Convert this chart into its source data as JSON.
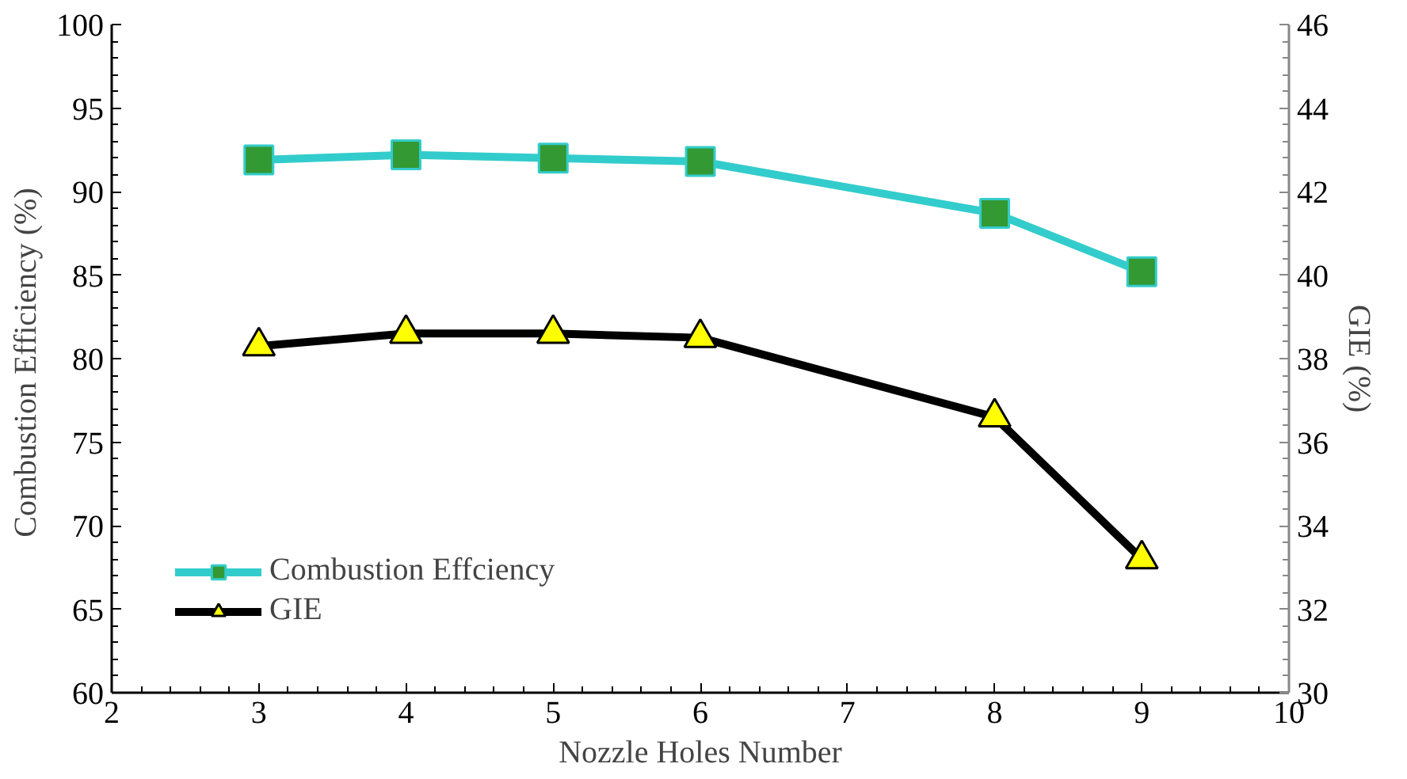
{
  "chart_data": {
    "type": "line",
    "xlabel": "Nozzle Holes Number",
    "ylabel": "Combustion  Efficiency (%)",
    "y2label": "GIE (%)",
    "x": [
      3,
      4,
      5,
      6,
      8,
      9
    ],
    "series": [
      {
        "name": "Combustion Effciency",
        "color": "#33cccc",
        "marker": "square",
        "values": [
          91.9,
          92.2,
          92.0,
          91.8,
          88.7,
          85.2
        ]
      },
      {
        "name": "GIE",
        "color": "#000000",
        "marker": "triangle",
        "axis": "y2",
        "values": [
          38.3,
          38.6,
          38.6,
          38.5,
          36.6,
          33.2
        ]
      }
    ],
    "xlim": [
      2,
      10
    ],
    "xticks": [
      2,
      3,
      4,
      5,
      6,
      7,
      8,
      9,
      10
    ],
    "ylim": [
      60,
      100
    ],
    "yticks": [
      60,
      65,
      70,
      75,
      80,
      85,
      90,
      95,
      100
    ],
    "y2lim": [
      30,
      46
    ],
    "y2ticks": [
      30,
      32,
      34,
      36,
      38,
      40,
      42,
      44,
      46
    ],
    "grid": false,
    "legend": "bottom left",
    "line_style": "solid"
  }
}
